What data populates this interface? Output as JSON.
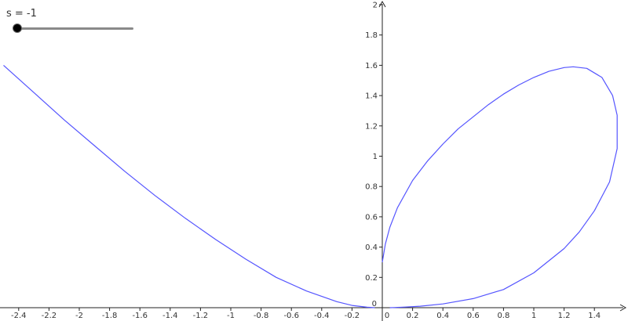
{
  "slider": {
    "label": "s = -1",
    "name": "s",
    "value": -1,
    "min": -1,
    "max": 1,
    "track_color": "#8a8a8a",
    "knob_color": "#000000"
  },
  "chart_data": {
    "type": "line",
    "title": "",
    "xlabel": "",
    "ylabel": "",
    "xlim": [
      -2.5,
      1.6
    ],
    "ylim": [
      -0.05,
      2.05
    ],
    "grid": false,
    "x_ticks": [
      -2.4,
      -2.2,
      -2,
      -1.8,
      -1.6,
      -1.4,
      -1.2,
      -1,
      -0.8,
      -0.6,
      -0.4,
      -0.2,
      0,
      0.2,
      0.4,
      0.6,
      0.8,
      1,
      1.2,
      1.4
    ],
    "x_tick_labels": [
      "-2.4",
      "-2.2",
      "-2",
      "-1.8",
      "-1.6",
      "-1.4",
      "-1.2",
      "-1",
      "-0.8",
      "-0.6",
      "-0.4",
      "-0.2",
      "0",
      "0.2",
      "0.4",
      "0.6",
      "0.8",
      "1",
      "1.2",
      "1.4"
    ],
    "y_ticks": [
      0.2,
      0.4,
      0.6,
      0.8,
      1,
      1.2,
      1.4,
      1.6,
      1.8,
      2
    ],
    "y_tick_labels": [
      "0.2",
      "0.4",
      "0.6",
      "0.8",
      "1",
      "1.2",
      "1.4",
      "1.6",
      "1.8",
      "2"
    ],
    "origin_label": "0",
    "curve_color": "#5555ff",
    "series": [
      {
        "x": [
          -2.5,
          -2.3,
          -2.1,
          -1.9,
          -1.7,
          -1.5,
          -1.3,
          -1.1,
          -0.9,
          -0.7,
          -0.5,
          -0.3,
          -0.2,
          -0.1,
          -0.05
        ],
        "y": [
          1.6,
          1.42,
          1.24,
          1.07,
          0.9,
          0.74,
          0.59,
          0.45,
          0.32,
          0.2,
          0.11,
          0.04,
          0.015,
          0.003,
          0.0
        ]
      },
      {
        "x": [
          0.0,
          0.02,
          0.05,
          0.1,
          0.2,
          0.3,
          0.4,
          0.5,
          0.6,
          0.7,
          0.8,
          0.9,
          1.0,
          1.1,
          1.2,
          1.26,
          1.35,
          1.45,
          1.52,
          1.55,
          1.55,
          1.5,
          1.4,
          1.3,
          1.2,
          1.0,
          0.8,
          0.6,
          0.4,
          0.25,
          0.15,
          0.08,
          0.05
        ],
        "y": [
          0.3,
          0.42,
          0.53,
          0.66,
          0.84,
          0.97,
          1.08,
          1.18,
          1.26,
          1.34,
          1.41,
          1.47,
          1.52,
          1.56,
          1.585,
          1.59,
          1.58,
          1.52,
          1.4,
          1.27,
          1.05,
          0.83,
          0.64,
          0.5,
          0.39,
          0.23,
          0.12,
          0.06,
          0.025,
          0.01,
          0.004,
          0.001,
          0.0
        ]
      }
    ]
  }
}
